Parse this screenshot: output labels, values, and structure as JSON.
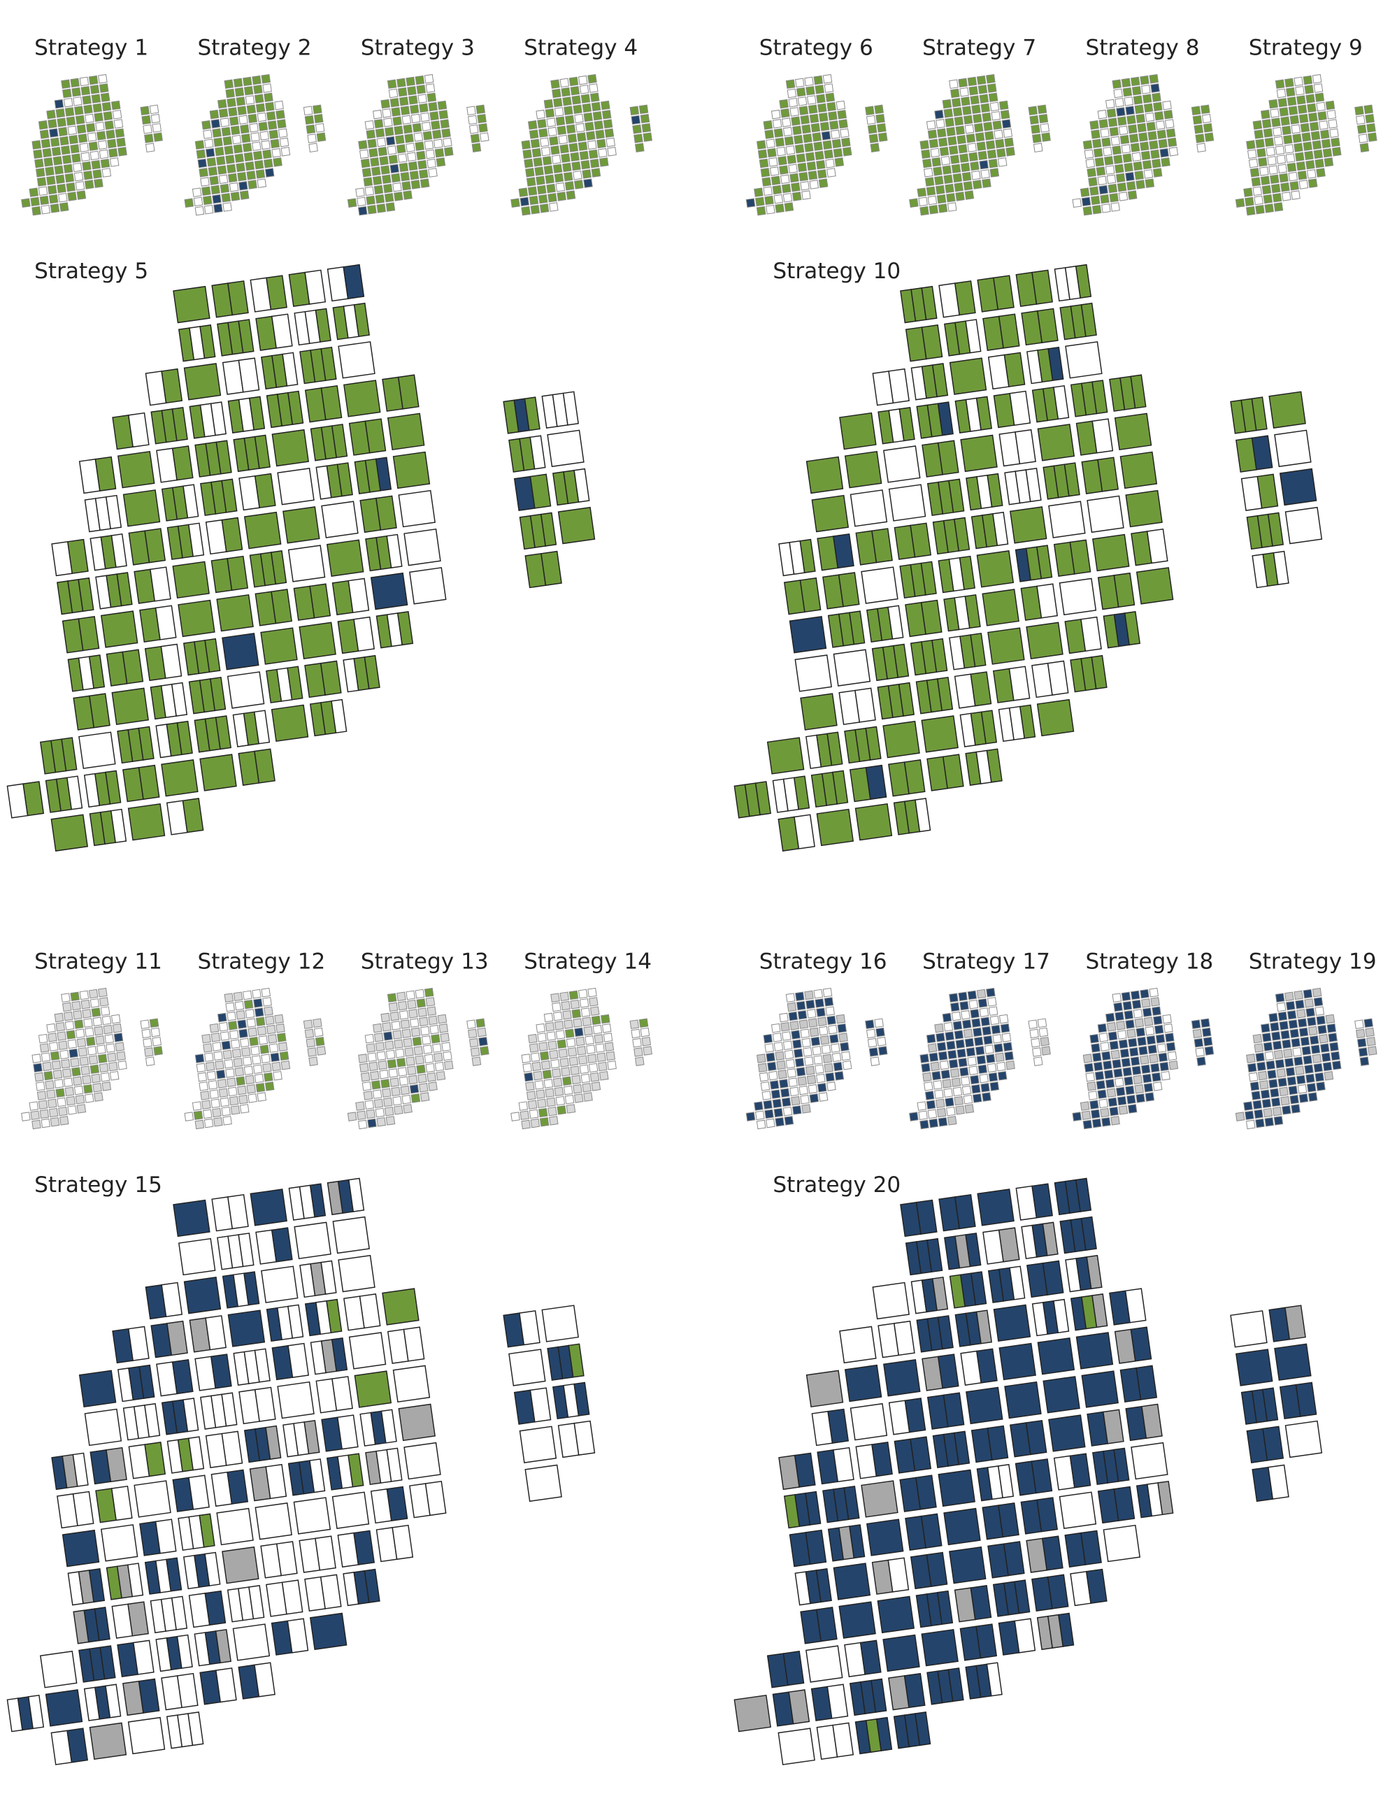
{
  "labels": [
    "Strategy 1",
    "Strategy 2",
    "Strategy 3",
    "Strategy 4",
    "Strategy 5",
    "Strategy 6",
    "Strategy 7",
    "Strategy 8",
    "Strategy 9",
    "Strategy 10",
    "Strategy 11",
    "Strategy 12",
    "Strategy 13",
    "Strategy 14",
    "Strategy 15",
    "Strategy 16",
    "Strategy 17",
    "Strategy 18",
    "Strategy 19",
    "Strategy 20"
  ]
}
